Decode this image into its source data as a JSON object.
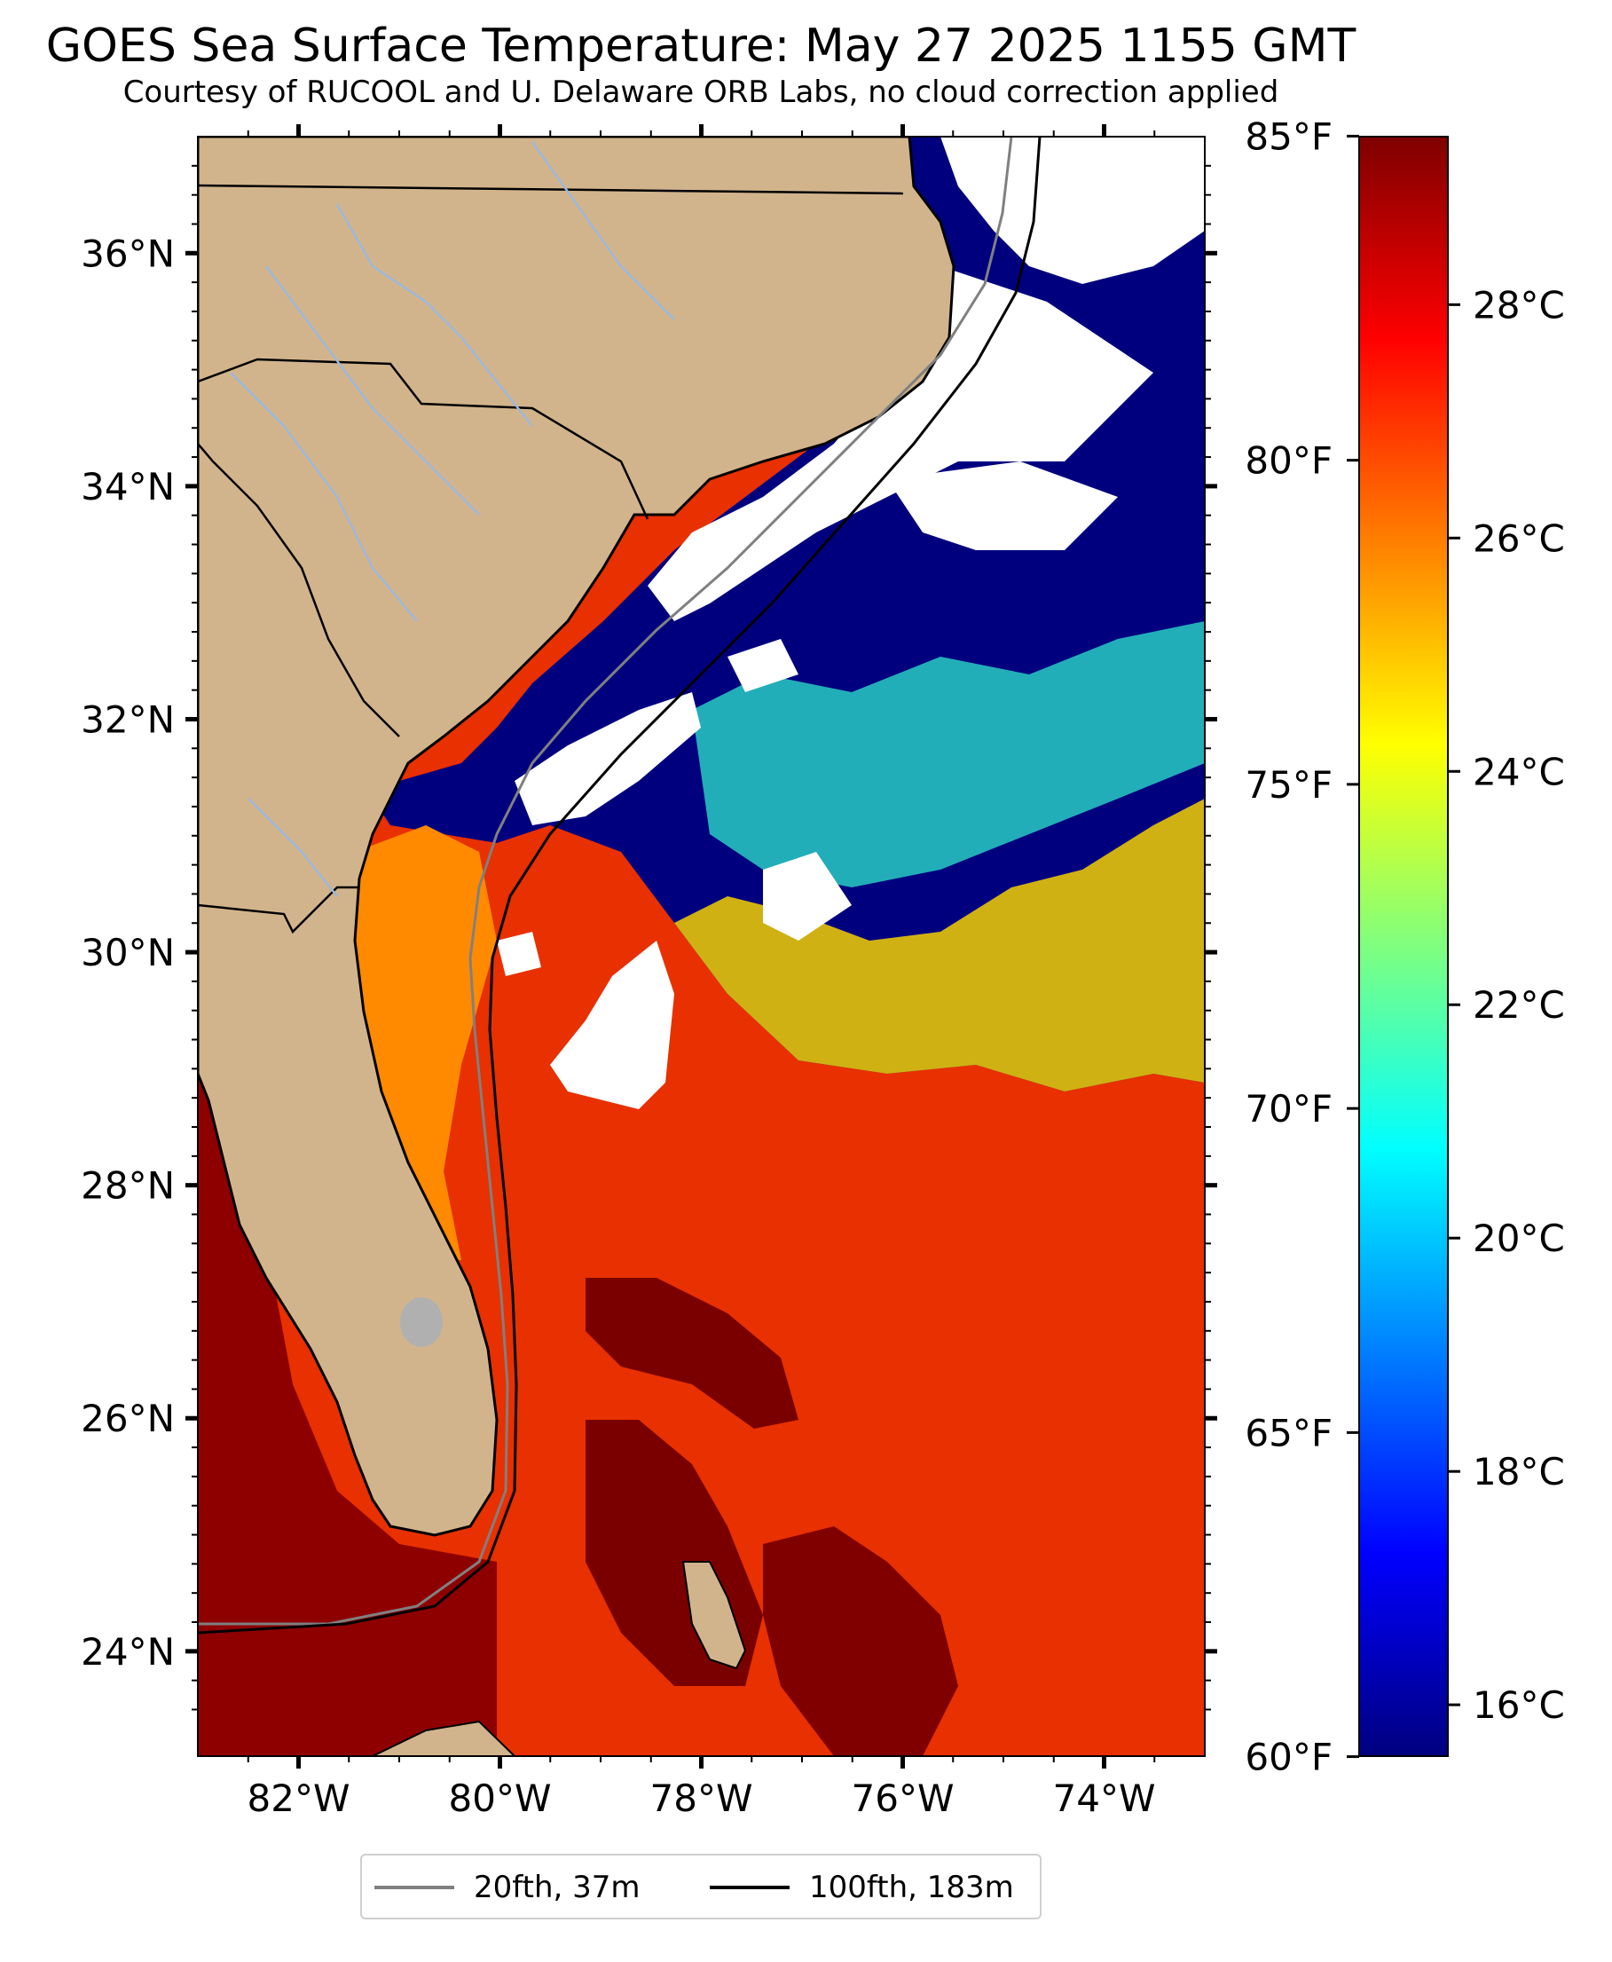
{
  "title": "GOES Sea Surface Temperature: May 27 2025 1155 GMT",
  "subtitle": "Courtesy of RUCOOL and U. Delaware ORB Labs, no cloud correction applied",
  "map": {
    "lon_range": [
      -83.0,
      -73.0
    ],
    "lat_range": [
      23.1,
      37.0
    ],
    "lat_ticks": [
      {
        "value": 36,
        "label": "36°N"
      },
      {
        "value": 34,
        "label": "34°N"
      },
      {
        "value": 32,
        "label": "32°N"
      },
      {
        "value": 30,
        "label": "30°N"
      },
      {
        "value": 28,
        "label": "28°N"
      },
      {
        "value": 26,
        "label": "26°N"
      },
      {
        "value": 24,
        "label": "24°N"
      }
    ],
    "lon_ticks": [
      {
        "value": -82,
        "label": "82°W"
      },
      {
        "value": -80,
        "label": "80°W"
      },
      {
        "value": -78,
        "label": "78°W"
      },
      {
        "value": -76,
        "label": "76°W"
      },
      {
        "value": -74,
        "label": "74°W"
      }
    ],
    "colors": {
      "land": "#d2b48c",
      "cloud": "#ffffff",
      "coastline": "#000000",
      "rivers": "#9db8d9",
      "lakes": "#b0b0b0"
    }
  },
  "colorbar": {
    "celsius_range": [
      15.56,
      29.44
    ],
    "fahrenheit_ticks": [
      {
        "value": 85,
        "label": "85°F"
      },
      {
        "value": 80,
        "label": "80°F"
      },
      {
        "value": 75,
        "label": "75°F"
      },
      {
        "value": 70,
        "label": "70°F"
      },
      {
        "value": 65,
        "label": "65°F"
      },
      {
        "value": 60,
        "label": "60°F"
      }
    ],
    "celsius_ticks": [
      {
        "value": 28,
        "label": "28°C"
      },
      {
        "value": 26,
        "label": "26°C"
      },
      {
        "value": 24,
        "label": "24°C"
      },
      {
        "value": 22,
        "label": "22°C"
      },
      {
        "value": 20,
        "label": "20°C"
      },
      {
        "value": 18,
        "label": "18°C"
      },
      {
        "value": 16,
        "label": "16°C"
      }
    ],
    "colormap": "jet",
    "colormap_stops": [
      "#00007f",
      "#0000ff",
      "#007fff",
      "#00ffff",
      "#7fff7f",
      "#ffff00",
      "#ff7f00",
      "#ff0000",
      "#7f0000"
    ]
  },
  "legend": {
    "items": [
      {
        "label": "20fth, 37m",
        "color": "#808080"
      },
      {
        "label": "100fth, 183m",
        "color": "#000000"
      }
    ]
  }
}
